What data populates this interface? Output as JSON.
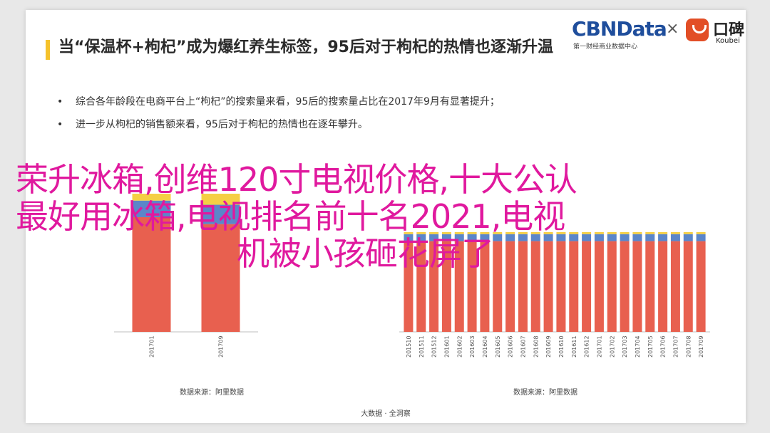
{
  "slide": {
    "title": "当“保温杯+枸杞”成为爆红养生标签，95后对于枸杞的热情也逐渐升温",
    "bullets": [
      "综合各年龄段在电商平台上“枸杞”的搜索量来看，95后的搜索量占比在2017年9月有显著提升；",
      "进一步从枸杞的销售额来看，95后对于枸杞的热情也在逐年攀升。"
    ],
    "footer": "大数据 · 全洞察"
  },
  "logos": {
    "cbn": "CBNData",
    "cbn_sub": "第一财经商业数据中心",
    "times": "×",
    "koubei": "口碑",
    "koubei_en": "Koubei"
  },
  "overlay": {
    "line1": "荣升冰箱,创维120寸电视价格,十大公认",
    "line2": "最好用冰箱,电视排名前十名2021,电视",
    "line3": "机被小孩砸花屏了"
  },
  "chart_data": [
    {
      "type": "bar",
      "stacked": true,
      "title": "",
      "source": "数据来源：阿里数据",
      "categories": [
        "201701",
        "201709"
      ],
      "series": [
        {
          "color": "#e8604f",
          "values": [
            0.83,
            0.78
          ]
        },
        {
          "color": "#5b86c9",
          "values": [
            0.12,
            0.14
          ]
        },
        {
          "color": "#f5cf44",
          "values": [
            0.05,
            0.08
          ]
        }
      ],
      "ylim": [
        0,
        1
      ],
      "colors": [
        "#e8604f",
        "#5b86c9",
        "#f5cf44"
      ]
    },
    {
      "type": "bar",
      "stacked": true,
      "title": "",
      "source": "数据来源：阿里数据",
      "categories": [
        "201510",
        "201511",
        "201512",
        "201601",
        "201602",
        "201603",
        "201604",
        "201605",
        "201606",
        "201607",
        "201608",
        "201609",
        "201610",
        "201611",
        "201612",
        "201701",
        "201702",
        "201703",
        "201704",
        "201705",
        "201706",
        "201707",
        "201708",
        "201709"
      ],
      "series": [
        {
          "color": "#e8604f",
          "values": [
            0.91,
            0.91,
            0.91,
            0.91,
            0.91,
            0.91,
            0.91,
            0.91,
            0.91,
            0.91,
            0.91,
            0.91,
            0.91,
            0.91,
            0.91,
            0.91,
            0.91,
            0.91,
            0.91,
            0.91,
            0.91,
            0.91,
            0.91,
            0.91
          ]
        },
        {
          "color": "#5b86c9",
          "values": [
            0.07,
            0.07,
            0.07,
            0.07,
            0.07,
            0.07,
            0.07,
            0.07,
            0.07,
            0.07,
            0.07,
            0.07,
            0.07,
            0.07,
            0.07,
            0.07,
            0.07,
            0.07,
            0.07,
            0.07,
            0.07,
            0.07,
            0.07,
            0.07
          ]
        },
        {
          "color": "#f5cf44",
          "values": [
            0.02,
            0.02,
            0.02,
            0.02,
            0.02,
            0.02,
            0.02,
            0.02,
            0.02,
            0.02,
            0.02,
            0.02,
            0.02,
            0.02,
            0.02,
            0.02,
            0.02,
            0.02,
            0.02,
            0.02,
            0.02,
            0.02,
            0.02,
            0.02
          ]
        }
      ],
      "ylim": [
        0,
        1
      ],
      "colors": [
        "#e8604f",
        "#5b86c9",
        "#f5cf44"
      ]
    }
  ]
}
